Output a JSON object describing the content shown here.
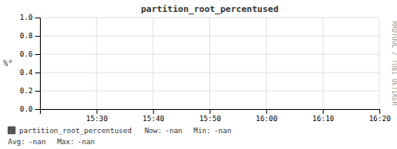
{
  "chart_data": {
    "type": "line",
    "title": "partition_root_percentused",
    "y_label": "%°",
    "x": [],
    "series": [
      {
        "name": "partition_root_percentused",
        "color": "#555555",
        "values": []
      }
    ],
    "xlim": [
      0,
      6
    ],
    "xticks": [
      {
        "value": 1,
        "label": "15:30"
      },
      {
        "value": 2,
        "label": "15:40"
      },
      {
        "value": 3,
        "label": "15:50"
      },
      {
        "value": 4,
        "label": "16:00"
      },
      {
        "value": 5,
        "label": "16:10"
      },
      {
        "value": 6,
        "label": "16:20"
      }
    ],
    "ylim": [
      0.0,
      1.0
    ],
    "yticks": [
      {
        "value": 0.0,
        "label": "0.0"
      },
      0.2,
      0.4,
      0.6,
      0.8,
      {
        "value": 1.0,
        "label": "1.0"
      }
    ],
    "grid": true,
    "legend": "bottom",
    "annotations": [
      "Now:",
      "-nan",
      "Min:",
      "-nan",
      "Avg:",
      "-nan",
      "Max:",
      "-nan",
      "RRDTOOL / TOBI OETIKER"
    ]
  }
}
